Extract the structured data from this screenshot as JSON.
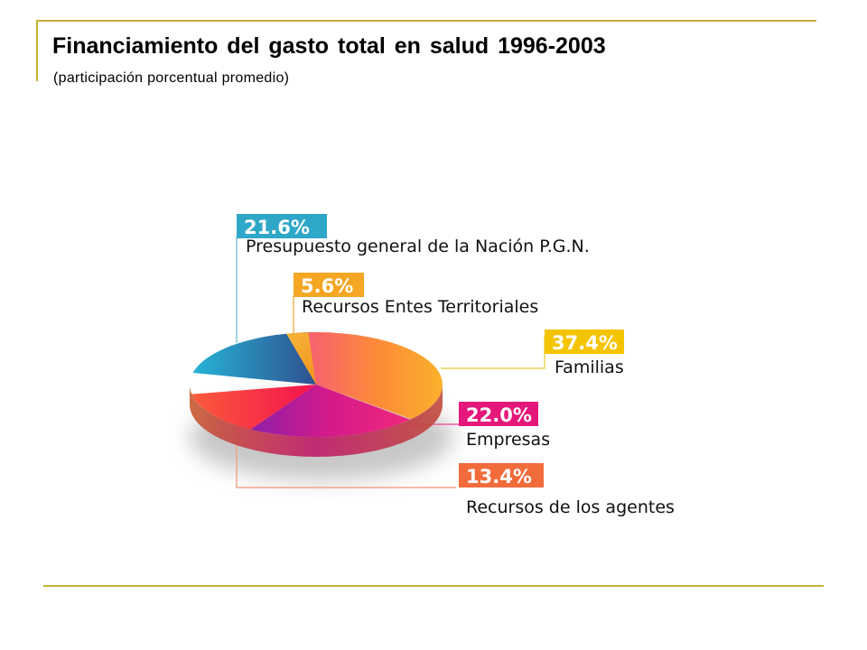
{
  "title": "Financiamiento del gasto total en salud 1996-2003",
  "subtitle": "(participación porcentual promedio)",
  "chart_data": {
    "type": "pie",
    "title": "Financiamiento del gasto total en salud 1996-2003",
    "subtitle": "(participación porcentual promedio)",
    "slices": [
      {
        "label": "Presupuesto general de la Nación P.G.N.",
        "value": 21.6,
        "value_label": "21.6%",
        "color": "#2fa7c8"
      },
      {
        "label": "Recursos Entes Territoriales",
        "value": 5.6,
        "value_label": "5.6%",
        "color": "#f5a623"
      },
      {
        "label": "Familias",
        "value": 37.4,
        "value_label": "37.4%",
        "color": "#f5c400"
      },
      {
        "label": "Empresas",
        "value": 22.0,
        "value_label": "22.0%",
        "color": "#e4187a"
      },
      {
        "label": "Recursos de los agentes",
        "value": 13.4,
        "value_label": "13.4%",
        "color": "#f26b3a"
      }
    ]
  }
}
